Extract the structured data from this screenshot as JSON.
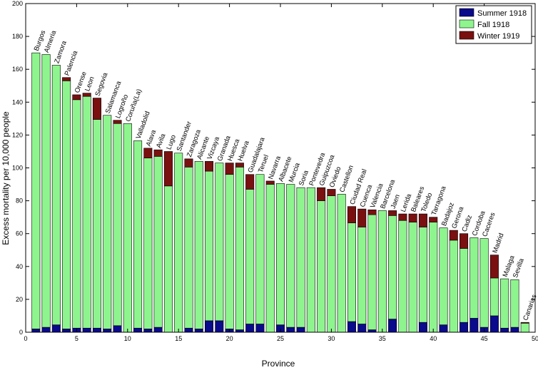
{
  "chart_data": {
    "type": "bar",
    "stacked": true,
    "xlabel": "Province",
    "ylabel": "Excess mortality per 10,000 people",
    "xlim": [
      0,
      50
    ],
    "ylim": [
      0,
      200
    ],
    "xticks": [
      0,
      5,
      10,
      15,
      20,
      25,
      30,
      35,
      40,
      45,
      50
    ],
    "yticks": [
      0,
      20,
      40,
      60,
      80,
      100,
      120,
      140,
      160,
      180,
      200
    ],
    "grid": false,
    "legend_position": "top-right",
    "categories": [
      "Burgos",
      "Almeria",
      "Zamora",
      "Palencia",
      "Orense",
      "Leon",
      "Segovia",
      "Salamanca",
      "Logroño",
      "Coruña(La)",
      "Valladolid",
      "Alava",
      "Avila",
      "Lugo",
      "Santander",
      "Zaragoza",
      "Alicante",
      "Vizcaya",
      "Granada",
      "Huesca",
      "Huelva",
      "Guadalajara",
      "Teruel",
      "Navarra",
      "Albacete",
      "Murcia",
      "Soria",
      "Pontevedra",
      "Guipuzcoa",
      "Oviedo",
      "Castellon",
      "Ciudad Real",
      "Cuenca",
      "Valencia",
      "Barcelona",
      "Jaen",
      "Lerida",
      "Baleares",
      "Toledo",
      "Tarragona",
      "Badajoz",
      "Gerona",
      "Cadiz",
      "Cordoba",
      "Caceres",
      "Madrid",
      "Malaga",
      "Sevilla",
      "Canarias"
    ],
    "series": [
      {
        "name": "Summer 1918",
        "color": "#0a0a8c",
        "values": [
          2,
          3,
          4.5,
          2,
          2.5,
          2.5,
          2.5,
          2,
          4,
          0,
          2.5,
          2,
          3,
          0,
          0,
          2.5,
          2,
          7,
          7,
          2,
          1.5,
          5,
          5,
          0,
          4.5,
          3,
          3,
          0,
          0,
          0,
          0,
          6.5,
          5,
          1.5,
          0,
          8,
          0,
          0,
          6,
          0,
          4.5,
          0,
          6,
          8.5,
          3,
          10,
          2.5,
          3,
          0
        ]
      },
      {
        "name": "Fall 1918",
        "color": "#8ef58e",
        "values": [
          168,
          166,
          158,
          151,
          139,
          141,
          127,
          130,
          123,
          127,
          114,
          104,
          104,
          89,
          109,
          98,
          102,
          91,
          96,
          94,
          99,
          82,
          91,
          90,
          86,
          87,
          85,
          88,
          80,
          83,
          84,
          60,
          59,
          70,
          74,
          63,
          68,
          67,
          58,
          67,
          59,
          56,
          45,
          49,
          54,
          23,
          30,
          29,
          5.5
        ]
      },
      {
        "name": "Winter 1919",
        "color": "#7a1010",
        "values": [
          0,
          0,
          0,
          2,
          3,
          2,
          13,
          0,
          2,
          0,
          0,
          6,
          4,
          21,
          0,
          5,
          0,
          6,
          0,
          7,
          2.5,
          9,
          0,
          2,
          0,
          0,
          0,
          0,
          8,
          4,
          0,
          10,
          11,
          3,
          0,
          3,
          4,
          5,
          8,
          3,
          0,
          6,
          9,
          0,
          0,
          14,
          0,
          0,
          0.5
        ]
      }
    ]
  }
}
